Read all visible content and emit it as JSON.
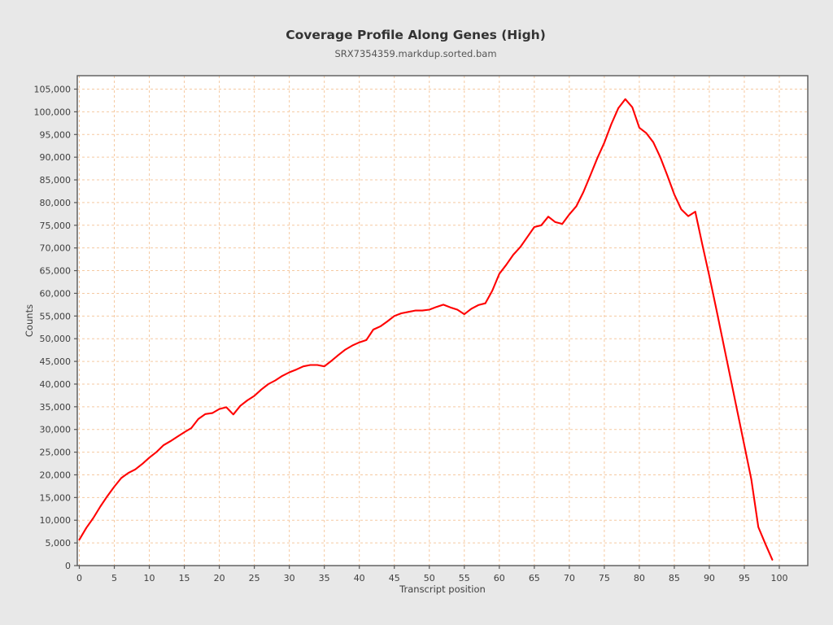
{
  "header": {
    "title": "Coverage Profile Along Genes (High)",
    "subtitle": "SRX7354359.markdup.sorted.bam"
  },
  "chart_data": {
    "type": "line",
    "title": "Coverage Profile Along Genes (High)",
    "subtitle": "SRX7354359.markdup.sorted.bam",
    "xlabel": "Transcript position",
    "ylabel": "Counts",
    "x_ticks": [
      0,
      5,
      10,
      15,
      20,
      25,
      30,
      35,
      40,
      45,
      50,
      55,
      60,
      65,
      70,
      75,
      80,
      85,
      90,
      95,
      100
    ],
    "y_ticks": [
      0,
      5000,
      10000,
      15000,
      20000,
      25000,
      30000,
      35000,
      40000,
      45000,
      50000,
      55000,
      60000,
      65000,
      70000,
      75000,
      80000,
      85000,
      90000,
      95000,
      100000,
      105000
    ],
    "xlim": [
      -0.3,
      104.1
    ],
    "ylim": [
      0,
      107900
    ],
    "grid": true,
    "legend": "none",
    "series": [
      {
        "name": "coverage",
        "x_start": 0,
        "x_step": 1,
        "values": [
          5700,
          8300,
          10500,
          13000,
          15300,
          17400,
          19300,
          20400,
          21200,
          22400,
          23800,
          25000,
          26500,
          27400,
          28400,
          29400,
          30300,
          32300,
          33400,
          33600,
          34500,
          34900,
          33300,
          35200,
          36400,
          37400,
          38800,
          40000,
          40800,
          41800,
          42600,
          43200,
          43900,
          44200,
          44200,
          43900,
          45100,
          46400,
          47600,
          48500,
          49200,
          49700,
          52000,
          52700,
          53800,
          55000,
          55600,
          55900,
          56200,
          56200,
          56400,
          57000,
          57500,
          56900,
          56400,
          55400,
          56600,
          57400,
          57800,
          60600,
          64300,
          66300,
          68500,
          70200,
          72400,
          74600,
          75000,
          76900,
          75700,
          75300,
          77400,
          79200,
          82300,
          86000,
          89800,
          93200,
          97300,
          100800,
          102800,
          101000,
          96500,
          95300,
          93300,
          90000,
          86000,
          81800,
          78500,
          77000,
          78000,
          70800,
          63800,
          56500,
          49000,
          41500,
          34000,
          26500,
          19000,
          8500,
          4800,
          1300
        ]
      }
    ]
  },
  "colors": {
    "page_background": "#e8e8e8",
    "plot_background": "#ffffff",
    "grid_color": "#f5c9a1",
    "line_color": "#ff0000",
    "border_color": "#595959",
    "text_color": "#3f3f3f"
  }
}
